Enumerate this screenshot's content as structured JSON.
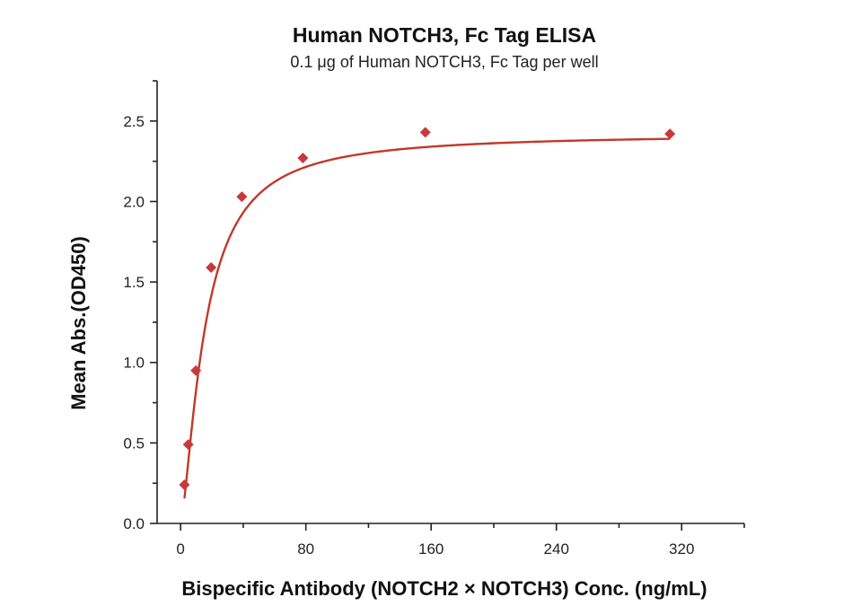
{
  "chart_data": {
    "type": "scatter",
    "title": "Human NOTCH3, Fc Tag ELISA",
    "subtitle": "0.1 μg of Human NOTCH3, Fc Tag per well",
    "xlabel": "Bispecific Antibody (NOTCH2 × NOTCH3) Conc. (ng/mL)",
    "ylabel": "Mean Abs.(OD450)",
    "xlim": [
      -15,
      360
    ],
    "ylim": [
      0,
      2.75
    ],
    "x_ticks": [
      0,
      80,
      160,
      240,
      320
    ],
    "x_tick_labels": [
      "0",
      "80",
      "160",
      "240",
      "320"
    ],
    "y_ticks": [
      0.0,
      0.5,
      1.0,
      1.5,
      2.0,
      2.5
    ],
    "y_tick_labels": [
      "0.0",
      "0.5",
      "1.0",
      "1.5",
      "2.0",
      "2.5"
    ],
    "grid": false,
    "series": [
      {
        "color": "#c8393b",
        "marker": "diamond",
        "x": [
          2.44,
          4.88,
          9.77,
          19.5,
          39.1,
          78.1,
          156.3,
          312.5
        ],
        "y": [
          0.24,
          0.49,
          0.95,
          1.59,
          2.03,
          2.27,
          2.43,
          2.42
        ],
        "fit": {
          "curve_color": "#c0392b",
          "model": "4PL"
        }
      }
    ]
  }
}
